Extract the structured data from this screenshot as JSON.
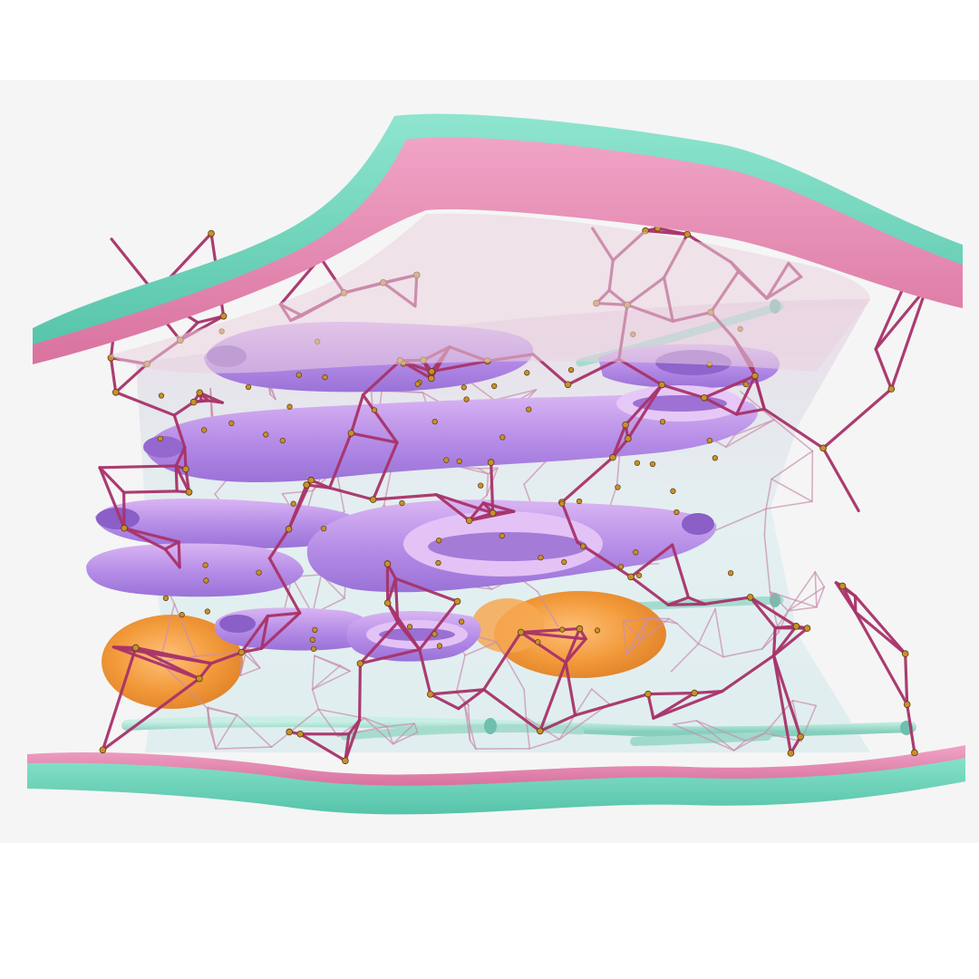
{
  "scene": {
    "background_color": "#f5f5f5",
    "canvas_color": "#ffffff",
    "membrane_outer_color": "#72d8c0",
    "membrane_inner_color": "#e07aa8",
    "interior_tint_color": "#cfe8ea",
    "filament_network_color": "#a8336a",
    "vesicle_color": "#b48be6",
    "vesicle_highlight_color": "#e6c8f7",
    "granule_color": "#c8902a",
    "granule_rim_color": "#5a3a10",
    "orange_body_color": "#f29a3a",
    "tubule_color": "#9fdacb",
    "icons": [
      "membrane-sheet",
      "filament-mesh",
      "vesicle-cluster",
      "granules",
      "orange-organelle",
      "tubules"
    ]
  }
}
